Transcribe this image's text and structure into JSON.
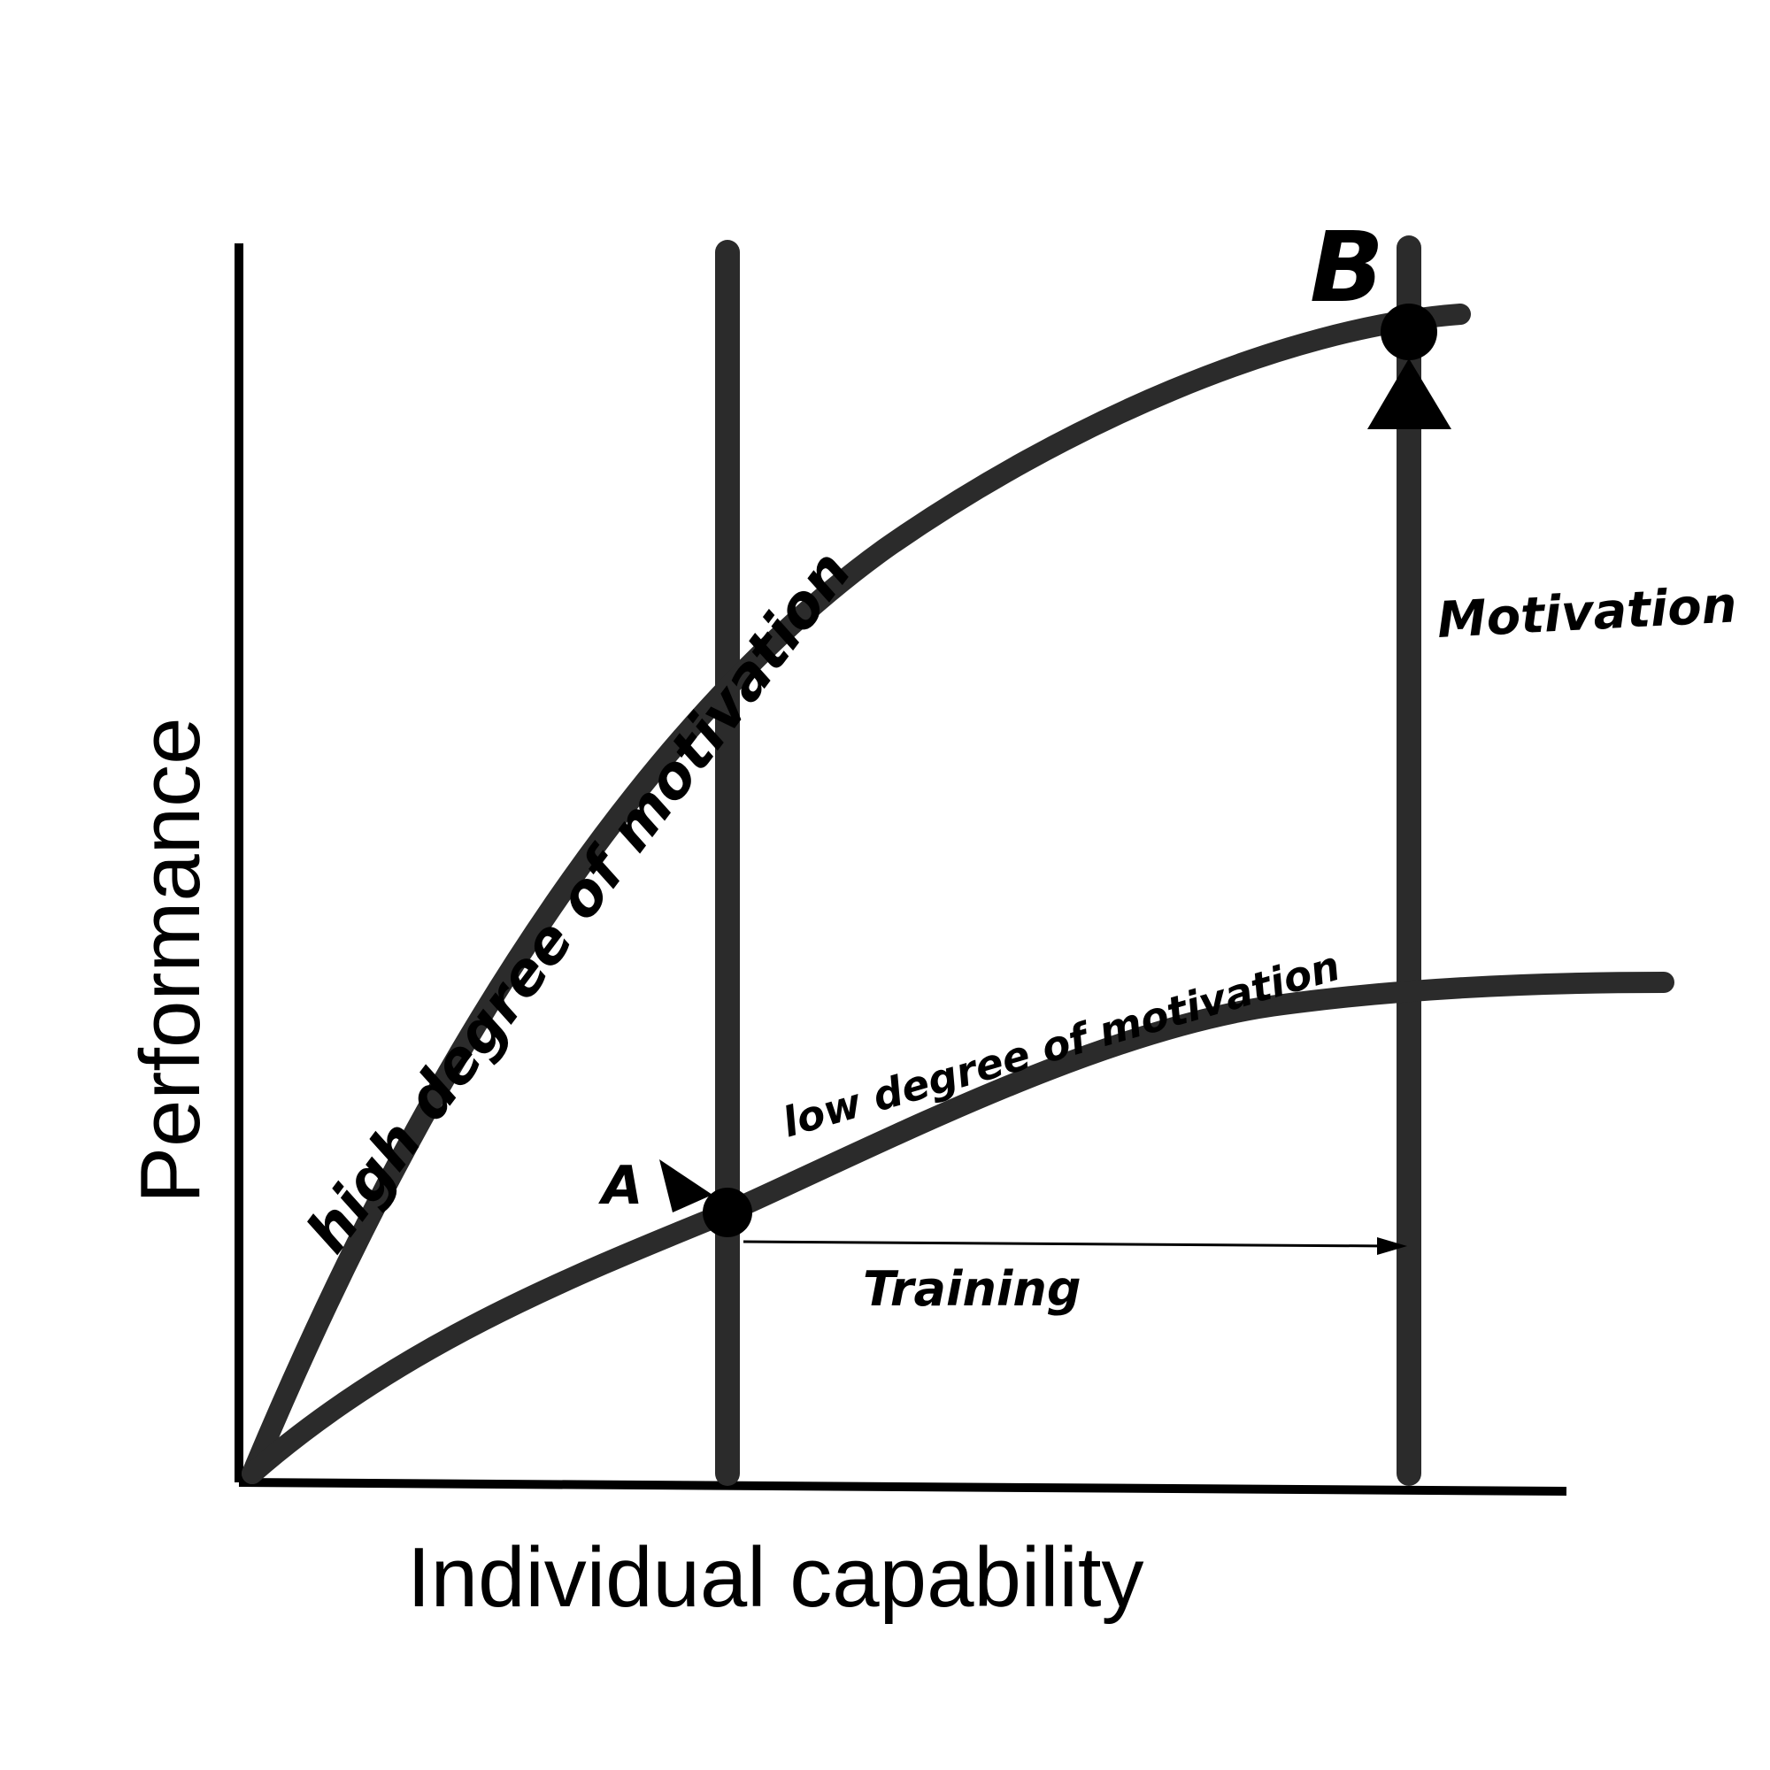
{
  "diagram": {
    "axes": {
      "y_label": "Performance",
      "x_label": "Individual capability"
    },
    "curves": {
      "high": "high degree of motivation",
      "low": "low degree of motivation"
    },
    "points": {
      "a": "A",
      "b": "B"
    },
    "arrows": {
      "training": "Training",
      "motivation": "Motivation"
    }
  }
}
